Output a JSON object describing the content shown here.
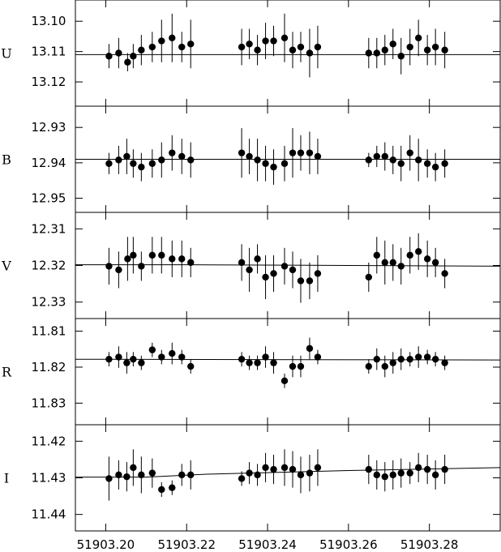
{
  "chart_data": {
    "type": "scatter",
    "x_ticks": [
      "51903.20",
      "51903.22",
      "51903.24",
      "51903.26",
      "51903.28"
    ],
    "x_tick_values": [
      51903.2,
      51903.22,
      51903.24,
      51903.26,
      51903.28
    ],
    "xlim": [
      51903.1925,
      51903.2975
    ],
    "marker": "filled-circle-with-error-bars",
    "color": "#000000",
    "panels": [
      {
        "name": "U",
        "ylim": [
          13.093,
          13.128
        ],
        "y_inverted": true,
        "y_ticks": [
          "13.10",
          "13.11",
          "13.12"
        ],
        "y_tick_values": [
          13.1,
          13.11,
          13.12
        ],
        "fit_line": [
          [
            51903.1925,
            13.111
          ],
          [
            51903.2975,
            13.111
          ]
        ],
        "points": [
          {
            "x": 51903.2008,
            "y": 13.1115,
            "err": 0.004
          },
          {
            "x": 51903.2032,
            "y": 13.1105,
            "err": 0.005
          },
          {
            "x": 51903.2054,
            "y": 13.1135,
            "err": 0.003
          },
          {
            "x": 51903.2068,
            "y": 13.1115,
            "err": 0.004
          },
          {
            "x": 51903.2088,
            "y": 13.1095,
            "err": 0.005
          },
          {
            "x": 51903.2115,
            "y": 13.1085,
            "err": 0.005
          },
          {
            "x": 51903.2138,
            "y": 13.1065,
            "err": 0.007
          },
          {
            "x": 51903.2164,
            "y": 13.1055,
            "err": 0.008
          },
          {
            "x": 51903.2188,
            "y": 13.1085,
            "err": 0.005
          },
          {
            "x": 51903.221,
            "y": 13.1075,
            "err": 0.008
          },
          {
            "x": 51903.2336,
            "y": 13.1085,
            "err": 0.006
          },
          {
            "x": 51903.2355,
            "y": 13.1075,
            "err": 0.005
          },
          {
            "x": 51903.2375,
            "y": 13.1095,
            "err": 0.005
          },
          {
            "x": 51903.2395,
            "y": 13.1065,
            "err": 0.006
          },
          {
            "x": 51903.2415,
            "y": 13.1065,
            "err": 0.005
          },
          {
            "x": 51903.2442,
            "y": 13.1055,
            "err": 0.008
          },
          {
            "x": 51903.2462,
            "y": 13.1095,
            "err": 0.006
          },
          {
            "x": 51903.2482,
            "y": 13.1085,
            "err": 0.005
          },
          {
            "x": 51903.2504,
            "y": 13.1105,
            "err": 0.008
          },
          {
            "x": 51903.2524,
            "y": 13.1085,
            "err": 0.007
          },
          {
            "x": 51903.265,
            "y": 13.1105,
            "err": 0.005
          },
          {
            "x": 51903.267,
            "y": 13.1105,
            "err": 0.005
          },
          {
            "x": 51903.269,
            "y": 13.1095,
            "err": 0.005
          },
          {
            "x": 51903.271,
            "y": 13.1075,
            "err": 0.005
          },
          {
            "x": 51903.273,
            "y": 13.1115,
            "err": 0.006
          },
          {
            "x": 51903.2752,
            "y": 13.1085,
            "err": 0.006
          },
          {
            "x": 51903.2773,
            "y": 13.1055,
            "err": 0.006
          },
          {
            "x": 51903.2795,
            "y": 13.1095,
            "err": 0.005
          },
          {
            "x": 51903.2815,
            "y": 13.1085,
            "err": 0.006
          },
          {
            "x": 51903.2838,
            "y": 13.1095,
            "err": 0.006
          }
        ]
      },
      {
        "name": "B",
        "ylim": [
          12.924,
          12.954
        ],
        "y_inverted": true,
        "y_ticks": [
          "12.93",
          "12.94",
          "12.95"
        ],
        "y_tick_values": [
          12.93,
          12.94,
          12.95
        ],
        "fit_line": [
          [
            51903.1925,
            12.939
          ],
          [
            51903.2975,
            12.939
          ]
        ],
        "points": [
          {
            "x": 51903.2008,
            "y": 12.9402,
            "err": 0.003
          },
          {
            "x": 51903.2032,
            "y": 12.9392,
            "err": 0.004
          },
          {
            "x": 51903.2052,
            "y": 12.9382,
            "err": 0.005
          },
          {
            "x": 51903.2068,
            "y": 12.9402,
            "err": 0.004
          },
          {
            "x": 51903.2088,
            "y": 12.9412,
            "err": 0.004
          },
          {
            "x": 51903.2115,
            "y": 12.9402,
            "err": 0.004
          },
          {
            "x": 51903.2138,
            "y": 12.9392,
            "err": 0.005
          },
          {
            "x": 51903.2164,
            "y": 12.9372,
            "err": 0.005
          },
          {
            "x": 51903.2188,
            "y": 12.9382,
            "err": 0.005
          },
          {
            "x": 51903.221,
            "y": 12.9392,
            "err": 0.005
          },
          {
            "x": 51903.2336,
            "y": 12.9372,
            "err": 0.007
          },
          {
            "x": 51903.2355,
            "y": 12.9382,
            "err": 0.005
          },
          {
            "x": 51903.2375,
            "y": 12.9392,
            "err": 0.006
          },
          {
            "x": 51903.2395,
            "y": 12.9402,
            "err": 0.005
          },
          {
            "x": 51903.2415,
            "y": 12.9412,
            "err": 0.005
          },
          {
            "x": 51903.2442,
            "y": 12.9402,
            "err": 0.005
          },
          {
            "x": 51903.2462,
            "y": 12.9372,
            "err": 0.007
          },
          {
            "x": 51903.2482,
            "y": 12.9372,
            "err": 0.005
          },
          {
            "x": 51903.2504,
            "y": 12.9372,
            "err": 0.006
          },
          {
            "x": 51903.2524,
            "y": 12.9382,
            "err": 0.005
          },
          {
            "x": 51903.265,
            "y": 12.9392,
            "err": 0.002
          },
          {
            "x": 51903.267,
            "y": 12.9382,
            "err": 0.003
          },
          {
            "x": 51903.269,
            "y": 12.9382,
            "err": 0.004
          },
          {
            "x": 51903.271,
            "y": 12.9392,
            "err": 0.004
          },
          {
            "x": 51903.273,
            "y": 12.9402,
            "err": 0.005
          },
          {
            "x": 51903.2752,
            "y": 12.9372,
            "err": 0.005
          },
          {
            "x": 51903.2773,
            "y": 12.9392,
            "err": 0.006
          },
          {
            "x": 51903.2795,
            "y": 12.9402,
            "err": 0.004
          },
          {
            "x": 51903.2815,
            "y": 12.9412,
            "err": 0.004
          },
          {
            "x": 51903.2838,
            "y": 12.9402,
            "err": 0.004
          }
        ]
      },
      {
        "name": "V",
        "ylim": [
          12.3055,
          12.3345
        ],
        "y_inverted": true,
        "y_ticks": [
          "12.31",
          "12.32",
          "12.33"
        ],
        "y_tick_values": [
          12.31,
          12.32,
          12.33
        ],
        "fit_line": [
          [
            51903.1925,
            12.3198
          ],
          [
            51903.22,
            12.3198
          ],
          [
            51903.26,
            12.32
          ],
          [
            51903.2975,
            12.3202
          ]
        ],
        "points": [
          {
            "x": 51903.2008,
            "y": 12.3202,
            "err": 0.005
          },
          {
            "x": 51903.2032,
            "y": 12.3212,
            "err": 0.005
          },
          {
            "x": 51903.2054,
            "y": 12.3182,
            "err": 0.006
          },
          {
            "x": 51903.2068,
            "y": 12.3172,
            "err": 0.005
          },
          {
            "x": 51903.2088,
            "y": 12.3202,
            "err": 0.004
          },
          {
            "x": 51903.2115,
            "y": 12.3172,
            "err": 0.005
          },
          {
            "x": 51903.2138,
            "y": 12.3172,
            "err": 0.005
          },
          {
            "x": 51903.2164,
            "y": 12.3182,
            "err": 0.005
          },
          {
            "x": 51903.2188,
            "y": 12.3182,
            "err": 0.005
          },
          {
            "x": 51903.221,
            "y": 12.3192,
            "err": 0.004
          },
          {
            "x": 51903.2336,
            "y": 12.3192,
            "err": 0.005
          },
          {
            "x": 51903.2355,
            "y": 12.3212,
            "err": 0.006
          },
          {
            "x": 51903.2375,
            "y": 12.3182,
            "err": 0.004
          },
          {
            "x": 51903.2395,
            "y": 12.3232,
            "err": 0.006
          },
          {
            "x": 51903.2415,
            "y": 12.3222,
            "err": 0.005
          },
          {
            "x": 51903.2442,
            "y": 12.3202,
            "err": 0.005
          },
          {
            "x": 51903.2462,
            "y": 12.3212,
            "err": 0.005
          },
          {
            "x": 51903.2482,
            "y": 12.3242,
            "err": 0.006
          },
          {
            "x": 51903.2504,
            "y": 12.3242,
            "err": 0.005
          },
          {
            "x": 51903.2524,
            "y": 12.3222,
            "err": 0.005
          },
          {
            "x": 51903.265,
            "y": 12.3232,
            "err": 0.004
          },
          {
            "x": 51903.267,
            "y": 12.3172,
            "err": 0.005
          },
          {
            "x": 51903.269,
            "y": 12.3192,
            "err": 0.006
          },
          {
            "x": 51903.271,
            "y": 12.3192,
            "err": 0.005
          },
          {
            "x": 51903.273,
            "y": 12.3202,
            "err": 0.005
          },
          {
            "x": 51903.2752,
            "y": 12.3172,
            "err": 0.005
          },
          {
            "x": 51903.2773,
            "y": 12.3162,
            "err": 0.005
          },
          {
            "x": 51903.2795,
            "y": 12.3182,
            "err": 0.005
          },
          {
            "x": 51903.2815,
            "y": 12.3192,
            "err": 0.004
          },
          {
            "x": 51903.2838,
            "y": 12.3222,
            "err": 0.004
          }
        ]
      },
      {
        "name": "R",
        "ylim": [
          11.8065,
          11.836
        ],
        "y_inverted": true,
        "y_ticks": [
          "11.81",
          "11.82",
          "11.83"
        ],
        "y_tick_values": [
          11.81,
          11.82,
          11.83
        ],
        "fit_line": [
          [
            51903.1925,
            11.8178
          ],
          [
            51903.2975,
            11.818
          ]
        ],
        "points": [
          {
            "x": 51903.2008,
            "y": 11.8178,
            "err": 0.002
          },
          {
            "x": 51903.2032,
            "y": 11.8172,
            "err": 0.003
          },
          {
            "x": 51903.2052,
            "y": 11.8188,
            "err": 0.003
          },
          {
            "x": 51903.2068,
            "y": 11.8178,
            "err": 0.002
          },
          {
            "x": 51903.2088,
            "y": 11.8188,
            "err": 0.002
          },
          {
            "x": 51903.2115,
            "y": 11.8152,
            "err": 0.002
          },
          {
            "x": 51903.2138,
            "y": 11.8172,
            "err": 0.002
          },
          {
            "x": 51903.2164,
            "y": 11.8162,
            "err": 0.003
          },
          {
            "x": 51903.2188,
            "y": 11.8172,
            "err": 0.002
          },
          {
            "x": 51903.221,
            "y": 11.8198,
            "err": 0.002
          },
          {
            "x": 51903.2336,
            "y": 11.8178,
            "err": 0.002
          },
          {
            "x": 51903.2355,
            "y": 11.8188,
            "err": 0.002
          },
          {
            "x": 51903.2375,
            "y": 11.8188,
            "err": 0.002
          },
          {
            "x": 51903.2395,
            "y": 11.8172,
            "err": 0.003
          },
          {
            "x": 51903.2415,
            "y": 11.8188,
            "err": 0.003
          },
          {
            "x": 51903.2442,
            "y": 11.8238,
            "err": 0.002
          },
          {
            "x": 51903.2462,
            "y": 11.8198,
            "err": 0.003
          },
          {
            "x": 51903.2482,
            "y": 11.8198,
            "err": 0.003
          },
          {
            "x": 51903.2504,
            "y": 11.8148,
            "err": 0.003
          },
          {
            "x": 51903.2524,
            "y": 11.8172,
            "err": 0.002
          },
          {
            "x": 51903.265,
            "y": 11.8198,
            "err": 0.002
          },
          {
            "x": 51903.267,
            "y": 11.8178,
            "err": 0.003
          },
          {
            "x": 51903.269,
            "y": 11.8198,
            "err": 0.003
          },
          {
            "x": 51903.271,
            "y": 11.8188,
            "err": 0.003
          },
          {
            "x": 51903.273,
            "y": 11.8178,
            "err": 0.003
          },
          {
            "x": 51903.2752,
            "y": 11.8178,
            "err": 0.002
          },
          {
            "x": 51903.2773,
            "y": 11.8172,
            "err": 0.003
          },
          {
            "x": 51903.2795,
            "y": 11.8172,
            "err": 0.002
          },
          {
            "x": 51903.2815,
            "y": 11.8178,
            "err": 0.002
          },
          {
            "x": 51903.2838,
            "y": 11.8188,
            "err": 0.002
          }
        ]
      },
      {
        "name": "I",
        "ylim": [
          11.4155,
          11.4445
        ],
        "y_inverted": true,
        "y_ticks": [
          "11.42",
          "11.43",
          "11.44"
        ],
        "y_tick_values": [
          11.42,
          11.43,
          11.44
        ],
        "fit_line": [
          [
            51903.1925,
            11.4298
          ],
          [
            51903.21,
            11.4298
          ],
          [
            51903.225,
            11.429
          ],
          [
            51903.26,
            11.428
          ],
          [
            51903.2975,
            11.4272
          ]
        ],
        "points": [
          {
            "x": 51903.2008,
            "y": 11.4302,
            "err": 0.006
          },
          {
            "x": 51903.2032,
            "y": 11.4292,
            "err": 0.004
          },
          {
            "x": 51903.2052,
            "y": 11.4297,
            "err": 0.004
          },
          {
            "x": 51903.2068,
            "y": 11.4272,
            "err": 0.005
          },
          {
            "x": 51903.2088,
            "y": 11.4292,
            "err": 0.005
          },
          {
            "x": 51903.2115,
            "y": 11.4287,
            "err": 0.004
          },
          {
            "x": 51903.2138,
            "y": 11.4332,
            "err": 0.002
          },
          {
            "x": 51903.2164,
            "y": 11.4327,
            "err": 0.002
          },
          {
            "x": 51903.2188,
            "y": 11.4292,
            "err": 0.003
          },
          {
            "x": 51903.221,
            "y": 11.4292,
            "err": 0.004
          },
          {
            "x": 51903.2336,
            "y": 11.4302,
            "err": 0.002
          },
          {
            "x": 51903.2355,
            "y": 11.4287,
            "err": 0.003
          },
          {
            "x": 51903.2375,
            "y": 11.4292,
            "err": 0.003
          },
          {
            "x": 51903.2395,
            "y": 11.4272,
            "err": 0.004
          },
          {
            "x": 51903.2415,
            "y": 11.4277,
            "err": 0.004
          },
          {
            "x": 51903.2442,
            "y": 11.4272,
            "err": 0.005
          },
          {
            "x": 51903.2462,
            "y": 11.4277,
            "err": 0.005
          },
          {
            "x": 51903.2482,
            "y": 11.4292,
            "err": 0.005
          },
          {
            "x": 51903.2504,
            "y": 11.4287,
            "err": 0.005
          },
          {
            "x": 51903.2524,
            "y": 11.4272,
            "err": 0.005
          },
          {
            "x": 51903.265,
            "y": 11.4277,
            "err": 0.004
          },
          {
            "x": 51903.267,
            "y": 11.4292,
            "err": 0.004
          },
          {
            "x": 51903.269,
            "y": 11.4297,
            "err": 0.004
          },
          {
            "x": 51903.271,
            "y": 11.4292,
            "err": 0.004
          },
          {
            "x": 51903.273,
            "y": 11.4287,
            "err": 0.004
          },
          {
            "x": 51903.2752,
            "y": 11.4287,
            "err": 0.003
          },
          {
            "x": 51903.2773,
            "y": 11.4272,
            "err": 0.004
          },
          {
            "x": 51903.2795,
            "y": 11.4277,
            "err": 0.004
          },
          {
            "x": 51903.2815,
            "y": 11.4292,
            "err": 0.004
          },
          {
            "x": 51903.2838,
            "y": 11.4277,
            "err": 0.004
          }
        ]
      }
    ]
  }
}
